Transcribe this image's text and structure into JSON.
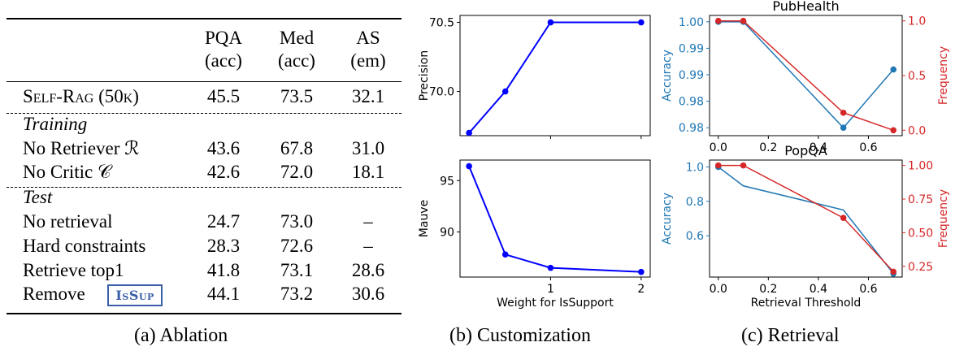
{
  "table": {
    "headers": [
      {
        "line1": "PQA",
        "line2": "(acc)"
      },
      {
        "line1": "Med",
        "line2": "(acc)"
      },
      {
        "line1": "AS",
        "line2": "(em)"
      }
    ],
    "main_row": {
      "label": "Self-Rag (50k)",
      "values": [
        "45.5",
        "73.5",
        "32.1"
      ]
    },
    "sections": [
      {
        "title": "Training",
        "rows": [
          {
            "label": "No Retriever ℛ",
            "values": [
              "43.6",
              "67.8",
              "31.0"
            ]
          },
          {
            "label": "No Critic 𝒞",
            "values": [
              "42.6",
              "72.0",
              "18.1"
            ]
          }
        ]
      },
      {
        "title": "Test",
        "rows": [
          {
            "label": "No retrieval",
            "values": [
              "24.7",
              "73.0",
              "–"
            ]
          },
          {
            "label": "Hard constraints",
            "values": [
              "28.3",
              "72.6",
              "–"
            ]
          },
          {
            "label": "Retrieve top1",
            "values": [
              "41.8",
              "73.1",
              "28.6"
            ]
          },
          {
            "label": "Remove",
            "badge": "IsSup",
            "values": [
              "44.1",
              "73.2",
              "30.6"
            ]
          }
        ]
      }
    ]
  },
  "captions": {
    "a": "(a) Ablation",
    "b": "(b) Customization",
    "c": "(c) Retrieval"
  },
  "colors": {
    "blue_line": "#0000ff",
    "accuracy": "#1f77b4",
    "frequency": "#d62728"
  },
  "chart_data": [
    {
      "type": "line",
      "ylabel": "Precision",
      "x": [
        0.1,
        0.5,
        1.0,
        2.0
      ],
      "series": [
        {
          "values": [
            69.7,
            70.0,
            70.5,
            70.5
          ]
        }
      ],
      "xlim": [
        0.0,
        2.1
      ],
      "ylim": [
        69.68,
        70.55
      ],
      "xticks": [
        1,
        2
      ],
      "xtick_labels": [
        "",
        ""
      ],
      "yticks": [
        70.0,
        70.5
      ],
      "ytick_labels": [
        "70.0",
        "70.5"
      ]
    },
    {
      "type": "line",
      "xlabel": "Weight for IsSupport",
      "ylabel": "Mauve",
      "x": [
        0.1,
        0.5,
        1.0,
        2.0
      ],
      "series": [
        {
          "values": [
            96.4,
            87.8,
            86.5,
            86.1
          ]
        }
      ],
      "xlim": [
        0.0,
        2.1
      ],
      "ylim": [
        85.6,
        97.0
      ],
      "xticks": [
        1,
        2
      ],
      "xtick_labels": [
        "1",
        "2"
      ],
      "yticks": [
        90,
        95
      ],
      "ytick_labels": [
        "90",
        "95"
      ]
    },
    {
      "type": "line",
      "title": "PubHealth",
      "ylabel": "Accuracy",
      "ylabel_right": "Frequency",
      "x": [
        0.0,
        0.1,
        0.5,
        0.7
      ],
      "series": [
        {
          "axis": "left",
          "color": "#1f77b4",
          "values": [
            1.0,
            1.0,
            0.98,
            0.991
          ]
        },
        {
          "axis": "right",
          "color": "#d62728",
          "values": [
            1.0,
            1.0,
            0.16,
            0.0
          ]
        }
      ],
      "xlim": [
        -0.035,
        0.735
      ],
      "ylim": [
        0.9785,
        1.0012
      ],
      "ylim_right": [
        -0.05,
        1.05
      ],
      "xticks": [
        0.0,
        0.2,
        0.4,
        0.6
      ],
      "xtick_labels": [
        "0.0",
        "0.2",
        "0.4",
        "0.6"
      ],
      "yticks": [
        0.98,
        0.985,
        0.99,
        0.995,
        1.0
      ],
      "ytick_labels": [
        "0.98",
        "0.98",
        "0.99",
        "0.99",
        "1.00"
      ],
      "yticks_right": [
        0.0,
        0.5,
        1.0
      ],
      "ytick_labels_right": [
        "0.0",
        "0.5",
        "1.0"
      ]
    },
    {
      "type": "line",
      "title": "PopQA",
      "xlabel": "Retrieval Threshold",
      "ylabel": "Accuracy",
      "ylabel_right": "Frequency",
      "x": [
        0.0,
        0.1,
        0.5,
        0.7
      ],
      "series": [
        {
          "axis": "left",
          "color": "#1f77b4",
          "values": [
            1.0,
            0.89,
            0.75,
            0.38
          ],
          "x": [
            0.0,
            0.1,
            0.5,
            0.7
          ]
        },
        {
          "axis": "right",
          "color": "#d62728",
          "values": [
            1.0,
            1.0,
            0.61,
            0.21
          ]
        }
      ],
      "xlim": [
        -0.035,
        0.735
      ],
      "ylim": [
        0.36,
        1.04
      ],
      "ylim_right": [
        0.17,
        1.04
      ],
      "xticks": [
        0.0,
        0.2,
        0.4,
        0.6
      ],
      "xtick_labels": [
        "0.0",
        "0.2",
        "0.4",
        "0.6"
      ],
      "yticks": [
        0.6,
        0.8,
        1.0
      ],
      "ytick_labels": [
        "0.6",
        "0.8",
        "1.0"
      ],
      "yticks_right": [
        0.25,
        0.5,
        0.75,
        1.0
      ],
      "ytick_labels_right": [
        "0.25",
        "0.50",
        "0.75",
        "1.00"
      ]
    }
  ]
}
